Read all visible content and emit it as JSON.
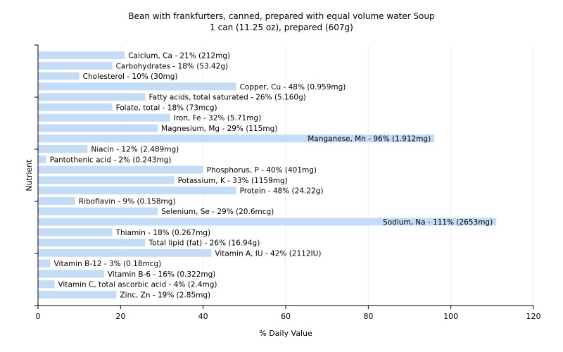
{
  "chart_data": {
    "type": "bar",
    "orientation": "horizontal",
    "title": "Bean with frankfurters, canned, prepared with equal volume water Soup",
    "subtitle": "1 can (11.25 oz), prepared (607g)",
    "xlabel": "% Daily Value",
    "ylabel": "Nutrient",
    "xlim": [
      0,
      120
    ],
    "xticks": [
      0,
      20,
      40,
      60,
      80,
      100,
      120
    ],
    "grid": "vertical",
    "legend": "none",
    "bar_color": "#c5dcf7",
    "grid_color": "#eeeeee",
    "categories": [
      "Calcium, Ca",
      "Carbohydrates",
      "Cholesterol",
      "Copper, Cu",
      "Fatty acids, total saturated",
      "Folate, total",
      "Iron, Fe",
      "Magnesium, Mg",
      "Manganese, Mn",
      "Niacin",
      "Pantothenic acid",
      "Phosphorus, P",
      "Potassium, K",
      "Protein",
      "Riboflavin",
      "Selenium, Se",
      "Sodium, Na",
      "Thiamin",
      "Total lipid (fat)",
      "Vitamin A, IU",
      "Vitamin B-12",
      "Vitamin B-6",
      "Vitamin C, total ascorbic acid",
      "Zinc, Zn"
    ],
    "values": [
      21,
      18,
      10,
      48,
      26,
      18,
      32,
      29,
      96,
      12,
      2,
      40,
      33,
      48,
      9,
      29,
      111,
      18,
      26,
      42,
      3,
      16,
      4,
      19
    ],
    "labels": [
      "Calcium, Ca - 21% (212mg)",
      "Carbohydrates - 18% (53.42g)",
      "Cholesterol - 10% (30mg)",
      "Copper, Cu - 48% (0.959mg)",
      "Fatty acids, total saturated - 26% (5.160g)",
      "Folate, total - 18% (73mcg)",
      "Iron, Fe - 32% (5.71mg)",
      "Magnesium, Mg - 29% (115mg)",
      "Manganese, Mn - 96% (1.912mg)",
      "Niacin - 12% (2.489mg)",
      "Pantothenic acid - 2% (0.243mg)",
      "Phosphorus, P - 40% (401mg)",
      "Potassium, K - 33% (1159mg)",
      "Protein - 48% (24.22g)",
      "Riboflavin - 9% (0.158mg)",
      "Selenium, Se - 29% (20.6mcg)",
      "Sodium, Na - 111% (2653mg)",
      "Thiamin - 18% (0.267mg)",
      "Total lipid (fat) - 26% (16.94g)",
      "Vitamin A, IU - 42% (2112IU)",
      "Vitamin B-12 - 3% (0.18mcg)",
      "Vitamin B-6 - 16% (0.322mg)",
      "Vitamin C, total ascorbic acid - 4% (2.4mg)",
      "Zinc, Zn - 19% (2.85mg)"
    ]
  }
}
